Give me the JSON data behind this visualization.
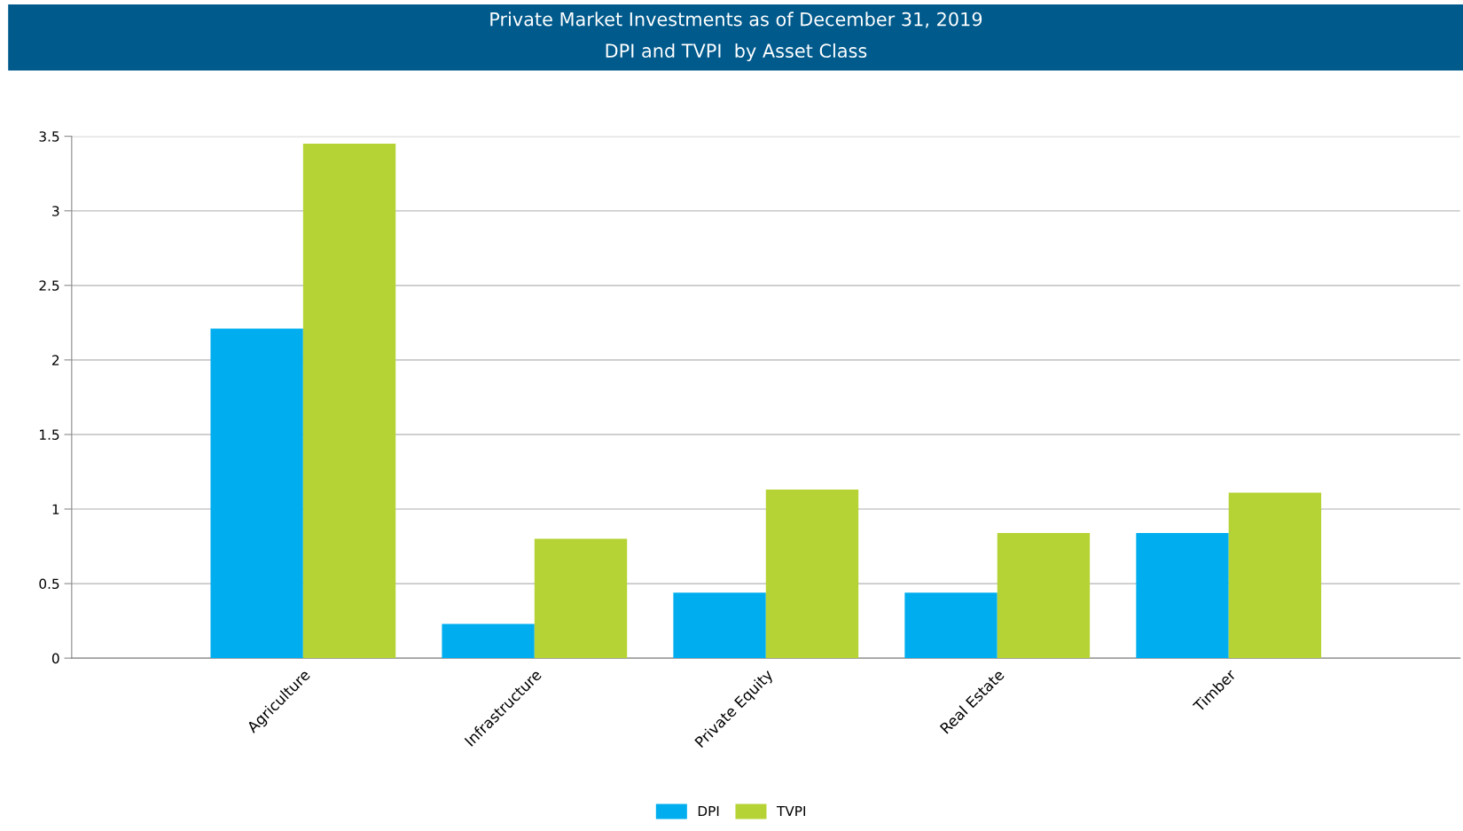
{
  "chart_data": {
    "type": "bar",
    "title": "Private Market Investments as of December 31, 2019",
    "subtitle": "DPI and TVPI  by Asset Class",
    "categories": [
      "Agriculture",
      "Infrastructure",
      "Private Equity",
      "Real Estate",
      "Timber"
    ],
    "series": [
      {
        "name": "DPI",
        "color": "#00aeef",
        "values": [
          2.21,
          0.23,
          0.44,
          0.44,
          0.84
        ]
      },
      {
        "name": "TVPI",
        "color": "#b5d334",
        "values": [
          3.45,
          0.8,
          1.13,
          0.84,
          1.11
        ]
      }
    ],
    "ylim": [
      0,
      3.5
    ],
    "yticks": [
      0,
      0.5,
      1,
      1.5,
      2,
      2.5,
      3,
      3.5
    ],
    "grid": "y",
    "legend": "bottom"
  }
}
